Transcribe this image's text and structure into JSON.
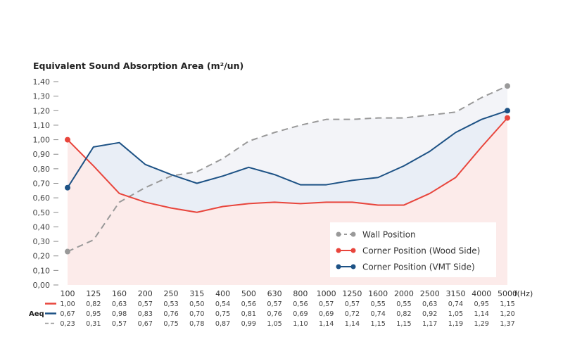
{
  "chart_data": {
    "type": "line",
    "title": "Equivalent Sound Absorption Area",
    "ylabel_unit": "(m²/un)",
    "xlabel": "f(Hz)",
    "ylim": [
      0,
      1.4
    ],
    "yticks": [
      "0,00",
      "0,10",
      "0,20",
      "0,30",
      "0,40",
      "0,50",
      "0,60",
      "0,70",
      "0,80",
      "0,90",
      "1,00",
      "1,10",
      "1,20",
      "1,30",
      "1,40"
    ],
    "categories": [
      "100",
      "125",
      "160",
      "200",
      "250",
      "315",
      "400",
      "500",
      "630",
      "800",
      "1000",
      "1250",
      "1600",
      "2000",
      "2500",
      "3150",
      "4000",
      "5000"
    ],
    "table_label": "Aeq",
    "series": [
      {
        "name": "Corner Position (Wood Side)",
        "color": "#e8453c",
        "style": "solid",
        "values": [
          1.0,
          0.82,
          0.63,
          0.57,
          0.53,
          0.5,
          0.54,
          0.56,
          0.57,
          0.56,
          0.57,
          0.57,
          0.55,
          0.55,
          0.63,
          0.74,
          0.95,
          1.15
        ],
        "labels": [
          "1,00",
          "0,82",
          "0,63",
          "0,57",
          "0,53",
          "0,50",
          "0,54",
          "0,56",
          "0,57",
          "0,56",
          "0,57",
          "0,57",
          "0,55",
          "0,55",
          "0,63",
          "0,74",
          "0,95",
          "1,15"
        ]
      },
      {
        "name": "Corner Position (VMT Side)",
        "color": "#1d5285",
        "style": "solid",
        "values": [
          0.67,
          0.95,
          0.98,
          0.83,
          0.76,
          0.7,
          0.75,
          0.81,
          0.76,
          0.69,
          0.69,
          0.72,
          0.74,
          0.82,
          0.92,
          1.05,
          1.14,
          1.2
        ],
        "labels": [
          "0,67",
          "0,95",
          "0,98",
          "0,83",
          "0,76",
          "0,70",
          "0,75",
          "0,81",
          "0,76",
          "0,69",
          "0,69",
          "0,72",
          "0,74",
          "0,82",
          "0,92",
          "1,05",
          "1,14",
          "1,20"
        ]
      },
      {
        "name": "Wall Position",
        "color": "#999999",
        "style": "dashed",
        "values": [
          0.23,
          0.31,
          0.57,
          0.67,
          0.75,
          0.78,
          0.87,
          0.99,
          1.05,
          1.1,
          1.14,
          1.14,
          1.15,
          1.15,
          1.17,
          1.19,
          1.29,
          1.37
        ],
        "labels": [
          "0,23",
          "0,31",
          "0,57",
          "0,67",
          "0,75",
          "0,78",
          "0,87",
          "0,99",
          "1,05",
          "1,10",
          "1,14",
          "1,14",
          "1,15",
          "1,15",
          "1,17",
          "1,19",
          "1,29",
          "1,37"
        ]
      }
    ],
    "legend": {
      "placement": "bottom-right",
      "order": [
        "Wall Position",
        "Corner Position (Wood Side)",
        "Corner Position (VMT Side)"
      ]
    },
    "grid": false
  }
}
